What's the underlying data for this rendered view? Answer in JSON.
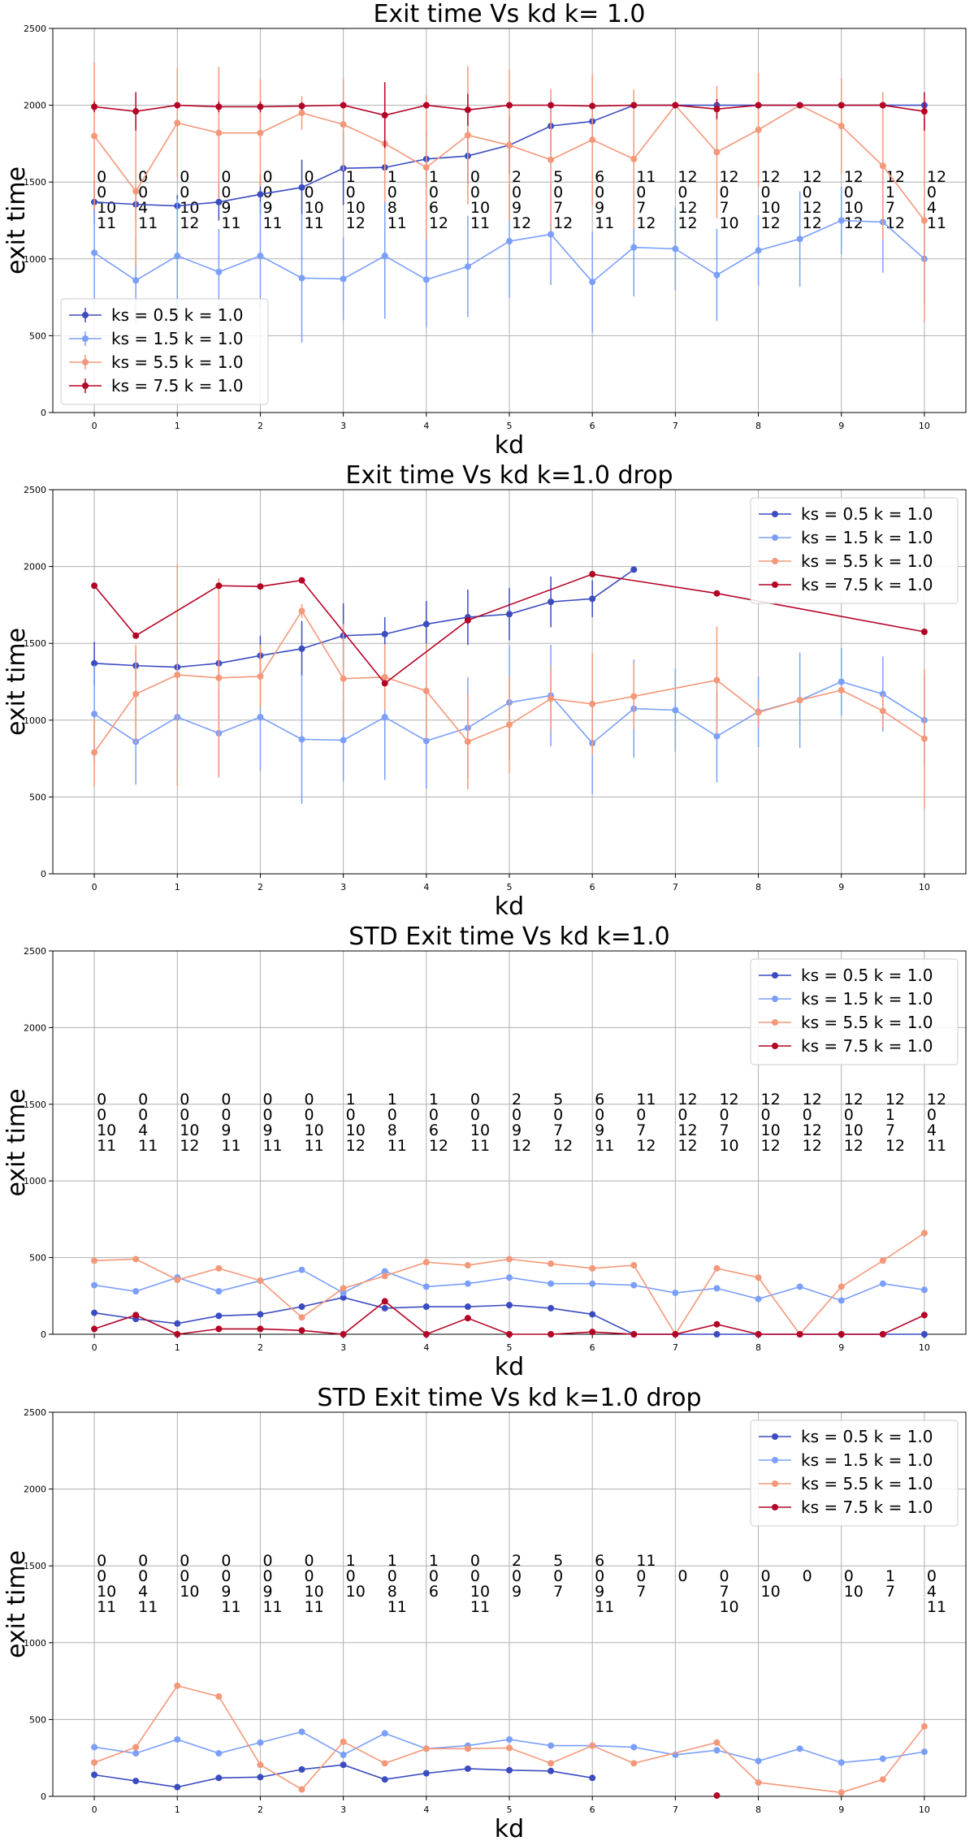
{
  "chart_data": [
    {
      "type": "line",
      "title": "Exit time Vs kd  k= 1.0",
      "xlabel": "kd",
      "ylabel": "exit time",
      "ylim": [
        0,
        2500
      ],
      "xlim": [
        -0.5,
        10.5
      ],
      "xticks": [
        "0",
        "1",
        "2",
        "3",
        "4",
        "5",
        "6",
        "7",
        "8",
        "9",
        "10"
      ],
      "yticks": [
        "0",
        "500",
        "1000",
        "1500",
        "2000",
        "2500"
      ],
      "grid": true,
      "legend_position": "lower-left",
      "x": [
        0,
        0.5,
        1,
        1.5,
        2,
        2.5,
        3,
        3.5,
        4,
        4.5,
        5,
        5.5,
        6,
        6.5,
        7,
        7.5,
        8,
        8.5,
        9,
        9.5,
        10
      ],
      "series": [
        {
          "name": "ks = 0.5 k = 1.0",
          "color": "#3b4cc0",
          "values": [
            1370,
            1355,
            1345,
            1370,
            1420,
            1465,
            1590,
            1595,
            1650,
            1670,
            1740,
            1865,
            1895,
            2000,
            2000,
            2000,
            2000,
            2000,
            2000,
            2000,
            2000
          ],
          "err": [
            140,
            100,
            70,
            120,
            130,
            180,
            240,
            170,
            180,
            180,
            190,
            170,
            130,
            0,
            0,
            0,
            0,
            0,
            0,
            0,
            0
          ]
        },
        {
          "name": "ks = 1.5 k = 1.0",
          "color": "#7b9ff9",
          "values": [
            1040,
            860,
            1020,
            915,
            1020,
            875,
            870,
            1020,
            865,
            950,
            1115,
            1160,
            850,
            1075,
            1065,
            895,
            1055,
            1130,
            1250,
            1240,
            1000
          ],
          "err": [
            320,
            280,
            370,
            280,
            350,
            420,
            270,
            410,
            310,
            330,
            370,
            330,
            330,
            320,
            270,
            300,
            230,
            310,
            220,
            330,
            290
          ]
        },
        {
          "name": "ks = 5.5 k = 1.0",
          "color": "#f4987a",
          "values": [
            1800,
            1440,
            1885,
            1820,
            1820,
            1950,
            1875,
            1750,
            1595,
            1805,
            1740,
            1645,
            1775,
            1650,
            2000,
            1695,
            1840,
            2000,
            1865,
            1605,
            1250
          ],
          "err": [
            480,
            490,
            355,
            430,
            350,
            110,
            300,
            380,
            470,
            450,
            490,
            460,
            430,
            450,
            0,
            430,
            370,
            0,
            310,
            480,
            660
          ]
        },
        {
          "name": "ks = 7.5 k = 1.0",
          "color": "#b40426",
          "values": [
            1990,
            1960,
            2000,
            1990,
            1990,
            1995,
            2000,
            1935,
            2000,
            1970,
            2000,
            2000,
            1995,
            2000,
            2000,
            1975,
            2000,
            2000,
            2000,
            2000,
            1960
          ],
          "err": [
            35,
            125,
            0,
            35,
            35,
            25,
            0,
            215,
            0,
            105,
            0,
            0,
            15,
            0,
            0,
            65,
            0,
            0,
            0,
            0,
            125
          ]
        }
      ],
      "annotations": [
        [
          "0",
          "0",
          "10",
          "11"
        ],
        [
          "0",
          "0",
          "4",
          "11"
        ],
        [
          "0",
          "0",
          "10",
          "12"
        ],
        [
          "0",
          "0",
          "9",
          "11"
        ],
        [
          "0",
          "0",
          "9",
          "11"
        ],
        [
          "0",
          "0",
          "10",
          "11"
        ],
        [
          "1",
          "0",
          "10",
          "12"
        ],
        [
          "1",
          "0",
          "8",
          "11"
        ],
        [
          "1",
          "0",
          "6",
          "12"
        ],
        [
          "0",
          "0",
          "10",
          "11"
        ],
        [
          "2",
          "0",
          "9",
          "12"
        ],
        [
          "5",
          "0",
          "7",
          "12"
        ],
        [
          "6",
          "0",
          "9",
          "11"
        ],
        [
          "11",
          "0",
          "7",
          "12"
        ],
        [
          "12",
          "0",
          "12",
          "12"
        ],
        [
          "12",
          "0",
          "7",
          "10"
        ],
        [
          "12",
          "0",
          "10",
          "12"
        ],
        [
          "12",
          "0",
          "12",
          "12"
        ],
        [
          "12",
          "0",
          "10",
          "12"
        ],
        [
          "12",
          "1",
          "7",
          "12"
        ],
        [
          "12",
          "0",
          "4",
          "11"
        ]
      ]
    },
    {
      "type": "line",
      "title": "Exit time Vs kd  k=1.0 drop",
      "xlabel": "kd",
      "ylabel": "exit time",
      "ylim": [
        0,
        2500
      ],
      "xlim": [
        -0.5,
        10.5
      ],
      "xticks": [
        "0",
        "1",
        "2",
        "3",
        "4",
        "5",
        "6",
        "7",
        "8",
        "9",
        "10"
      ],
      "yticks": [
        "0",
        "500",
        "1000",
        "1500",
        "2000",
        "2500"
      ],
      "grid": true,
      "legend_position": "upper-right",
      "series": [
        {
          "name": "ks = 0.5 k = 1.0",
          "color": "#3b4cc0",
          "x": [
            0,
            0.5,
            1,
            1.5,
            2,
            2.5,
            3,
            3.5,
            4,
            4.5,
            5,
            5.5,
            6,
            6.5
          ],
          "values": [
            1370,
            1355,
            1345,
            1370,
            1420,
            1465,
            1550,
            1560,
            1625,
            1670,
            1690,
            1770,
            1790,
            1980
          ],
          "err": [
            140,
            100,
            70,
            120,
            130,
            180,
            210,
            110,
            150,
            180,
            170,
            165,
            120,
            0
          ]
        },
        {
          "name": "ks = 1.5 k = 1.0",
          "color": "#7b9ff9",
          "x": [
            0,
            0.5,
            1,
            1.5,
            2,
            2.5,
            3,
            3.5,
            4,
            4.5,
            5,
            5.5,
            6,
            6.5,
            7,
            7.5,
            8,
            8.5,
            9,
            9.5,
            10
          ],
          "values": [
            1040,
            860,
            1020,
            915,
            1020,
            875,
            870,
            1020,
            865,
            950,
            1115,
            1160,
            850,
            1075,
            1065,
            895,
            1055,
            1130,
            1250,
            1170,
            1000
          ],
          "err": [
            320,
            280,
            370,
            280,
            350,
            420,
            270,
            410,
            310,
            330,
            370,
            330,
            330,
            320,
            270,
            300,
            230,
            310,
            220,
            245,
            290
          ]
        },
        {
          "name": "ks = 5.5 k = 1.0",
          "color": "#f4987a",
          "x": [
            0,
            0.5,
            1,
            1.5,
            2,
            2.5,
            3,
            3.5,
            4,
            4.5,
            5,
            5.5,
            6,
            6.5,
            7.5,
            8,
            8.5,
            9,
            9.5,
            10
          ],
          "values": [
            790,
            1170,
            1295,
            1275,
            1285,
            1710,
            1270,
            1280,
            1190,
            860,
            970,
            1140,
            1105,
            1155,
            1260,
            1050,
            1130,
            1195,
            1060,
            880
          ],
          "err": [
            220,
            320,
            720,
            650,
            205,
            45,
            355,
            215,
            310,
            310,
            315,
            215,
            330,
            215,
            350,
            90,
            0,
            25,
            110,
            455
          ]
        },
        {
          "name": "ks = 7.5 k = 1.0",
          "color": "#b40426",
          "x": [
            0,
            0.5,
            1.5,
            2,
            2.5,
            3.5,
            4.5,
            6,
            7.5,
            10
          ],
          "values": [
            1875,
            1550,
            1875,
            1870,
            1910,
            1240,
            1650,
            1950,
            1825,
            1575
          ],
          "err": [
            0,
            0,
            0,
            0,
            0,
            0,
            0,
            0,
            0,
            0
          ]
        }
      ]
    },
    {
      "type": "line",
      "title": "STD Exit time Vs kd  k=1.0",
      "xlabel": "kd",
      "ylabel": "exit time",
      "ylim": [
        0,
        2500
      ],
      "xlim": [
        -0.5,
        10.5
      ],
      "xticks": [
        "0",
        "1",
        "2",
        "3",
        "4",
        "5",
        "6",
        "7",
        "8",
        "9",
        "10"
      ],
      "yticks": [
        "0",
        "500",
        "1000",
        "1500",
        "2000",
        "2500"
      ],
      "grid": true,
      "legend_position": "upper-right",
      "x": [
        0,
        0.5,
        1,
        1.5,
        2,
        2.5,
        3,
        3.5,
        4,
        4.5,
        5,
        5.5,
        6,
        6.5,
        7,
        7.5,
        8,
        8.5,
        9,
        9.5,
        10
      ],
      "series": [
        {
          "name": "ks = 0.5 k = 1.0",
          "color": "#3b4cc0",
          "values": [
            140,
            100,
            70,
            120,
            130,
            180,
            240,
            170,
            180,
            180,
            190,
            170,
            130,
            0,
            0,
            0,
            0,
            0,
            0,
            0,
            0
          ]
        },
        {
          "name": "ks = 1.5 k = 1.0",
          "color": "#7b9ff9",
          "values": [
            320,
            280,
            370,
            280,
            350,
            420,
            270,
            410,
            310,
            330,
            370,
            330,
            330,
            320,
            270,
            300,
            230,
            310,
            220,
            330,
            290
          ]
        },
        {
          "name": "ks = 5.5 k = 1.0",
          "color": "#f4987a",
          "values": [
            480,
            490,
            355,
            430,
            350,
            110,
            300,
            380,
            470,
            450,
            490,
            460,
            430,
            450,
            0,
            430,
            370,
            0,
            310,
            480,
            660
          ]
        },
        {
          "name": "ks = 7.5 k = 1.0",
          "color": "#b40426",
          "values": [
            35,
            125,
            0,
            35,
            35,
            25,
            0,
            215,
            0,
            105,
            0,
            0,
            15,
            0,
            0,
            65,
            0,
            0,
            0,
            0,
            125
          ]
        }
      ],
      "annotations": [
        [
          "0",
          "0",
          "10",
          "11"
        ],
        [
          "0",
          "0",
          "4",
          "11"
        ],
        [
          "0",
          "0",
          "10",
          "12"
        ],
        [
          "0",
          "0",
          "9",
          "11"
        ],
        [
          "0",
          "0",
          "9",
          "11"
        ],
        [
          "0",
          "0",
          "10",
          "11"
        ],
        [
          "1",
          "0",
          "10",
          "12"
        ],
        [
          "1",
          "0",
          "8",
          "11"
        ],
        [
          "1",
          "0",
          "6",
          "12"
        ],
        [
          "0",
          "0",
          "10",
          "11"
        ],
        [
          "2",
          "0",
          "9",
          "12"
        ],
        [
          "5",
          "0",
          "7",
          "12"
        ],
        [
          "6",
          "0",
          "9",
          "11"
        ],
        [
          "11",
          "0",
          "7",
          "12"
        ],
        [
          "12",
          "0",
          "12",
          "12"
        ],
        [
          "12",
          "0",
          "7",
          "10"
        ],
        [
          "12",
          "0",
          "10",
          "12"
        ],
        [
          "12",
          "0",
          "12",
          "12"
        ],
        [
          "12",
          "0",
          "10",
          "12"
        ],
        [
          "12",
          "1",
          "7",
          "12"
        ],
        [
          "12",
          "0",
          "4",
          "11"
        ]
      ]
    },
    {
      "type": "line",
      "title": "STD Exit time Vs kd  k=1.0 drop",
      "xlabel": "kd",
      "ylabel": "exit time",
      "ylim": [
        0,
        2500
      ],
      "xlim": [
        -0.5,
        10.5
      ],
      "xticks": [
        "0",
        "1",
        "2",
        "3",
        "4",
        "5",
        "6",
        "7",
        "8",
        "9",
        "10"
      ],
      "yticks": [
        "0",
        "500",
        "1000",
        "1500",
        "2000",
        "2500"
      ],
      "grid": true,
      "legend_position": "upper-right",
      "series": [
        {
          "name": "ks = 0.5 k = 1.0",
          "color": "#3b4cc0",
          "x": [
            0,
            0.5,
            1,
            1.5,
            2,
            2.5,
            3,
            3.5,
            4,
            4.5,
            5,
            5.5,
            6
          ],
          "values": [
            140,
            100,
            60,
            120,
            125,
            175,
            205,
            110,
            150,
            180,
            170,
            165,
            120
          ]
        },
        {
          "name": "ks = 1.5 k = 1.0",
          "color": "#7b9ff9",
          "x": [
            0,
            0.5,
            1,
            1.5,
            2,
            2.5,
            3,
            3.5,
            4,
            4.5,
            5,
            5.5,
            6,
            6.5,
            7,
            7.5,
            8,
            8.5,
            9,
            9.5,
            10
          ],
          "values": [
            320,
            280,
            370,
            280,
            350,
            420,
            270,
            410,
            310,
            330,
            370,
            330,
            330,
            320,
            270,
            300,
            230,
            310,
            220,
            245,
            290
          ]
        },
        {
          "name": "ks = 5.5 k = 1.0",
          "color": "#f4987a",
          "x": [
            0,
            0.5,
            1,
            1.5,
            2,
            2.5,
            3,
            3.5,
            4,
            4.5,
            5,
            5.5,
            6,
            6.5,
            7.5,
            8,
            9,
            9.5,
            10
          ],
          "values": [
            220,
            320,
            720,
            650,
            205,
            45,
            355,
            215,
            310,
            310,
            315,
            215,
            330,
            215,
            350,
            90,
            25,
            110,
            455
          ]
        },
        {
          "name": "ks = 7.5 k = 1.0",
          "color": "#b40426",
          "x": [
            7.5
          ],
          "values": [
            5
          ]
        }
      ],
      "annotations": [
        [
          "0",
          "0",
          "10",
          "11"
        ],
        [
          "0",
          "0",
          "4",
          "11"
        ],
        [
          "0",
          "0",
          "10",
          ""
        ],
        [
          "0",
          "0",
          "9",
          "11"
        ],
        [
          "0",
          "0",
          "9",
          "11"
        ],
        [
          "0",
          "0",
          "10",
          "11"
        ],
        [
          "1",
          "0",
          "10",
          ""
        ],
        [
          "1",
          "0",
          "8",
          "11"
        ],
        [
          "1",
          "0",
          "6",
          ""
        ],
        [
          "0",
          "0",
          "10",
          "11"
        ],
        [
          "2",
          "0",
          "9",
          ""
        ],
        [
          "5",
          "0",
          "7",
          ""
        ],
        [
          "6",
          "0",
          "9",
          "11"
        ],
        [
          "11",
          "0",
          "7",
          ""
        ],
        [
          "",
          "0",
          "",
          ""
        ],
        [
          "",
          "0",
          "7",
          "10"
        ],
        [
          "",
          "0",
          "10",
          ""
        ],
        [
          "",
          "0",
          "",
          ""
        ],
        [
          "",
          "0",
          "10",
          ""
        ],
        [
          "",
          "1",
          "7",
          ""
        ],
        [
          "",
          "0",
          "4",
          "11"
        ]
      ]
    }
  ]
}
